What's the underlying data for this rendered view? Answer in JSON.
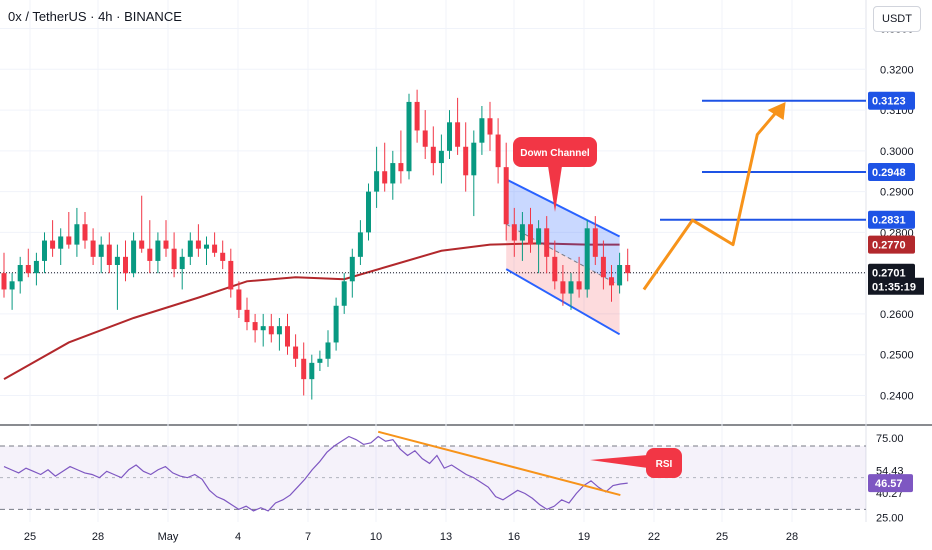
{
  "header": {
    "title": "0x / TetherUS · 4h · BINANCE",
    "currency": "USDT"
  },
  "colors": {
    "up": "#089981",
    "down": "#f23645",
    "ma": "#b2282c",
    "channel_line": "#2962ff",
    "level_line": "#1e53e5",
    "projection": "#f7931a",
    "rsi": "#7e57c2",
    "annotation": "#f23645"
  },
  "chart_data": [
    {
      "type": "candlestick",
      "title": "0x / TetherUS · 4h · BINANCE",
      "ylim": [
        0.233,
        0.337
      ],
      "x_ticks": [
        "25",
        "28",
        "May",
        "4",
        "7",
        "10",
        "13",
        "16",
        "19",
        "22",
        "25",
        "28"
      ],
      "y_ticks": [
        "0.3300",
        "0.3200",
        "0.3100",
        "0.3000",
        "0.2900",
        "0.2800",
        "0.2600",
        "0.2500",
        "0.2400"
      ],
      "price_tags": [
        {
          "value": "0.3123",
          "kind": "level"
        },
        {
          "value": "0.2948",
          "kind": "level"
        },
        {
          "value": "0.2831",
          "kind": "level"
        },
        {
          "value": "0.2770",
          "kind": "ma"
        },
        {
          "value": "0.2701",
          "kind": "last"
        }
      ],
      "countdown": "01:35:19",
      "annotation": "Down Channel",
      "ohlc": [
        [
          0.27,
          0.275,
          0.264,
          0.266
        ],
        [
          0.266,
          0.27,
          0.261,
          0.268
        ],
        [
          0.268,
          0.274,
          0.265,
          0.272
        ],
        [
          0.272,
          0.276,
          0.269,
          0.27
        ],
        [
          0.27,
          0.275,
          0.267,
          0.273
        ],
        [
          0.273,
          0.28,
          0.27,
          0.278
        ],
        [
          0.278,
          0.283,
          0.274,
          0.276
        ],
        [
          0.276,
          0.281,
          0.272,
          0.279
        ],
        [
          0.279,
          0.285,
          0.276,
          0.277
        ],
        [
          0.277,
          0.286,
          0.274,
          0.282
        ],
        [
          0.282,
          0.285,
          0.276,
          0.278
        ],
        [
          0.278,
          0.281,
          0.272,
          0.274
        ],
        [
          0.274,
          0.279,
          0.27,
          0.277
        ],
        [
          0.277,
          0.28,
          0.27,
          0.272
        ],
        [
          0.272,
          0.277,
          0.261,
          0.274
        ],
        [
          0.274,
          0.278,
          0.268,
          0.27
        ],
        [
          0.27,
          0.28,
          0.269,
          0.278
        ],
        [
          0.278,
          0.289,
          0.275,
          0.276
        ],
        [
          0.276,
          0.283,
          0.27,
          0.273
        ],
        [
          0.273,
          0.28,
          0.27,
          0.278
        ],
        [
          0.278,
          0.283,
          0.274,
          0.276
        ],
        [
          0.276,
          0.28,
          0.269,
          0.271
        ],
        [
          0.271,
          0.276,
          0.266,
          0.274
        ],
        [
          0.274,
          0.28,
          0.272,
          0.278
        ],
        [
          0.278,
          0.282,
          0.274,
          0.276
        ],
        [
          0.276,
          0.279,
          0.272,
          0.277
        ],
        [
          0.277,
          0.28,
          0.274,
          0.275
        ],
        [
          0.275,
          0.278,
          0.271,
          0.273
        ],
        [
          0.273,
          0.276,
          0.264,
          0.266
        ],
        [
          0.266,
          0.268,
          0.259,
          0.261
        ],
        [
          0.261,
          0.264,
          0.256,
          0.258
        ],
        [
          0.258,
          0.26,
          0.253,
          0.256
        ],
        [
          0.256,
          0.26,
          0.252,
          0.257
        ],
        [
          0.257,
          0.26,
          0.253,
          0.255
        ],
        [
          0.255,
          0.259,
          0.251,
          0.257
        ],
        [
          0.257,
          0.26,
          0.25,
          0.252
        ],
        [
          0.252,
          0.255,
          0.247,
          0.249
        ],
        [
          0.249,
          0.253,
          0.24,
          0.244
        ],
        [
          0.244,
          0.25,
          0.239,
          0.248
        ],
        [
          0.248,
          0.251,
          0.246,
          0.249
        ],
        [
          0.249,
          0.256,
          0.247,
          0.253
        ],
        [
          0.253,
          0.264,
          0.251,
          0.262
        ],
        [
          0.262,
          0.27,
          0.26,
          0.268
        ],
        [
          0.268,
          0.276,
          0.264,
          0.274
        ],
        [
          0.274,
          0.283,
          0.272,
          0.28
        ],
        [
          0.28,
          0.292,
          0.278,
          0.29
        ],
        [
          0.29,
          0.301,
          0.286,
          0.295
        ],
        [
          0.295,
          0.302,
          0.29,
          0.292
        ],
        [
          0.292,
          0.3,
          0.288,
          0.297
        ],
        [
          0.297,
          0.305,
          0.292,
          0.295
        ],
        [
          0.295,
          0.314,
          0.293,
          0.312
        ],
        [
          0.312,
          0.315,
          0.302,
          0.305
        ],
        [
          0.305,
          0.31,
          0.298,
          0.301
        ],
        [
          0.301,
          0.306,
          0.294,
          0.297
        ],
        [
          0.297,
          0.304,
          0.292,
          0.3
        ],
        [
          0.3,
          0.31,
          0.298,
          0.307
        ],
        [
          0.307,
          0.313,
          0.299,
          0.301
        ],
        [
          0.301,
          0.307,
          0.29,
          0.294
        ],
        [
          0.294,
          0.305,
          0.284,
          0.302
        ],
        [
          0.302,
          0.311,
          0.299,
          0.308
        ],
        [
          0.308,
          0.312,
          0.3,
          0.304
        ],
        [
          0.304,
          0.308,
          0.292,
          0.296
        ],
        [
          0.296,
          0.302,
          0.278,
          0.282
        ],
        [
          0.282,
          0.286,
          0.274,
          0.278
        ],
        [
          0.278,
          0.285,
          0.273,
          0.282
        ],
        [
          0.282,
          0.286,
          0.275,
          0.277
        ],
        [
          0.277,
          0.283,
          0.27,
          0.281
        ],
        [
          0.281,
          0.284,
          0.27,
          0.274
        ],
        [
          0.274,
          0.278,
          0.266,
          0.268
        ],
        [
          0.268,
          0.272,
          0.262,
          0.265
        ],
        [
          0.265,
          0.27,
          0.261,
          0.268
        ],
        [
          0.268,
          0.274,
          0.264,
          0.266
        ],
        [
          0.266,
          0.283,
          0.264,
          0.281
        ],
        [
          0.281,
          0.284,
          0.272,
          0.274
        ],
        [
          0.274,
          0.278,
          0.266,
          0.269
        ],
        [
          0.269,
          0.272,
          0.263,
          0.267
        ],
        [
          0.267,
          0.275,
          0.265,
          0.272
        ],
        [
          0.272,
          0.276,
          0.268,
          0.27
        ]
      ],
      "ma": [
        {
          "x": 0,
          "y": 0.244
        },
        {
          "x": 8,
          "y": 0.253
        },
        {
          "x": 16,
          "y": 0.259
        },
        {
          "x": 24,
          "y": 0.264
        },
        {
          "x": 30,
          "y": 0.268
        },
        {
          "x": 36,
          "y": 0.269
        },
        {
          "x": 42,
          "y": 0.2685
        },
        {
          "x": 48,
          "y": 0.272
        },
        {
          "x": 54,
          "y": 0.2755
        },
        {
          "x": 60,
          "y": 0.277
        },
        {
          "x": 66,
          "y": 0.2773
        },
        {
          "x": 72,
          "y": 0.277
        },
        {
          "x": 76,
          "y": 0.277
        }
      ],
      "channel": {
        "upper": [
          {
            "x": 62,
            "y": 0.293
          },
          {
            "x": 76,
            "y": 0.279
          }
        ],
        "lower": [
          {
            "x": 62,
            "y": 0.271
          },
          {
            "x": 76,
            "y": 0.255
          }
        ]
      },
      "levels": [
        0.3123,
        0.2948,
        0.2831
      ],
      "projection": [
        {
          "x": 79,
          "y": 0.266
        },
        {
          "x": 85,
          "y": 0.283
        },
        {
          "x": 90,
          "y": 0.277
        },
        {
          "x": 93,
          "y": 0.304
        },
        {
          "x": 96,
          "y": 0.311
        }
      ],
      "last_price": 0.2701
    },
    {
      "type": "line",
      "title": "RSI",
      "ylim": [
        22,
        82
      ],
      "y_ticks": [
        "75.00",
        "54.43",
        "40.27",
        "25.00"
      ],
      "bands": [
        70,
        30
      ],
      "value_tag": "46.57",
      "annotation": "RSI",
      "values": [
        57,
        55,
        53,
        56,
        54,
        52,
        55,
        51,
        54,
        57,
        55,
        53,
        52,
        50,
        54,
        52,
        50,
        55,
        58,
        54,
        52,
        55,
        57,
        53,
        51,
        50,
        52,
        49,
        42,
        38,
        36,
        33,
        30,
        32,
        29,
        31,
        29,
        34,
        36,
        39,
        44,
        49,
        55,
        60,
        66,
        70,
        73,
        76,
        74,
        71,
        72,
        76,
        73,
        74,
        68,
        64,
        67,
        62,
        59,
        64,
        56,
        58,
        55,
        52,
        50,
        47,
        44,
        38,
        36,
        39,
        42,
        40,
        37,
        33,
        30,
        32,
        36,
        34,
        40,
        45,
        48,
        44,
        41,
        45,
        46,
        46.57
      ],
      "trendline": [
        {
          "x": 51,
          "y": 79
        },
        {
          "x": 84,
          "y": 39
        }
      ]
    }
  ]
}
